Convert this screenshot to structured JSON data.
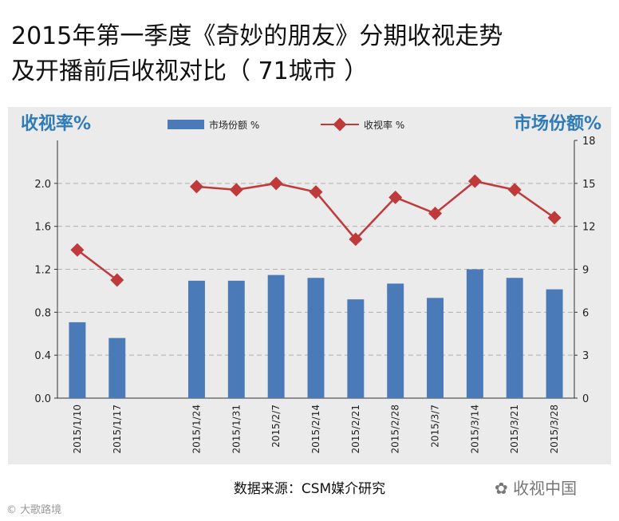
{
  "title_line1": "2015年第一季度《奇妙的朋友》分期收视走势",
  "title_line2": "及开播前后收视对比（ 71城市 ）",
  "source": "数据来源：CSM媒介研究",
  "watermark_right": "收视中国",
  "watermark_left": "大歌路境",
  "chart_data": {
    "type": "bar+line",
    "categories": [
      "2015/1/10",
      "2015/1/17",
      "2015/1/24",
      "2015/1/31",
      "2015/2/7",
      "2015/2/14",
      "2015/2/21",
      "2015/2/28",
      "2015/3/7",
      "2015/3/14",
      "2015/3/21",
      "2015/3/28"
    ],
    "left_axis": {
      "label": "收视率%",
      "ticks": [
        "0.0",
        "0.4",
        "0.8",
        "1.2",
        "1.6",
        "2.0"
      ],
      "range": [
        0,
        2.4
      ]
    },
    "right_axis": {
      "label": "市场份额%",
      "ticks": [
        "0",
        "3",
        "6",
        "9",
        "12",
        "15",
        "18"
      ],
      "range": [
        0,
        18
      ]
    },
    "series": [
      {
        "name": "市场份额 %",
        "type": "bar",
        "axis": "right",
        "values": [
          5.3,
          4.2,
          8.2,
          8.2,
          8.6,
          8.4,
          6.9,
          8.0,
          7.0,
          9.0,
          8.4,
          7.6
        ],
        "color": "#4a7ab8"
      },
      {
        "name": "收视率 %",
        "type": "line",
        "axis": "left",
        "segments": [
          {
            "x": [
              "2015/1/10",
              "2015/1/17"
            ],
            "values": [
              1.38,
              1.1
            ]
          },
          {
            "x": [
              "2015/1/24",
              "2015/1/31",
              "2015/2/7",
              "2015/2/14",
              "2015/2/21",
              "2015/2/28",
              "2015/3/7",
              "2015/3/14",
              "2015/3/21",
              "2015/3/28"
            ],
            "values": [
              1.97,
              1.94,
              2.0,
              1.92,
              1.48,
              1.87,
              1.72,
              2.02,
              1.94,
              1.68
            ]
          }
        ],
        "color": "#c0393b"
      }
    ],
    "grid": true,
    "legend": "top-center"
  }
}
